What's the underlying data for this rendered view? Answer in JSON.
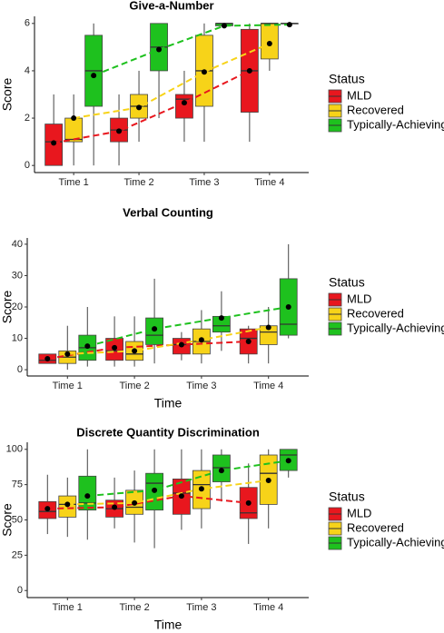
{
  "chart_data": [
    {
      "type": "box",
      "title": "Give-a-Number",
      "y_label": "Score",
      "legend_title": "Status",
      "categories": [
        "Time 1",
        "Time 2",
        "Time 3",
        "Time 4"
      ],
      "ylim": [
        -0.3,
        6.3
      ],
      "yticks": [
        0,
        2,
        4,
        6
      ],
      "series": [
        {
          "name": "MLD",
          "color": "#e8171e",
          "min": [
            0,
            0,
            1,
            1
          ],
          "q1": [
            0,
            1,
            2,
            2.25
          ],
          "median": [
            1,
            1.5,
            2.8,
            4
          ],
          "q3": [
            1.75,
            2,
            3,
            5.75
          ],
          "max": [
            3,
            3,
            4,
            6
          ],
          "mean": [
            0.95,
            1.45,
            2.65,
            4
          ]
        },
        {
          "name": "Recovered",
          "color": "#f7d319",
          "min": [
            0,
            1,
            1,
            4
          ],
          "q1": [
            1,
            2,
            2.5,
            4.5
          ],
          "median": [
            1.1,
            2.5,
            4,
            6
          ],
          "q3": [
            2,
            3,
            5.5,
            6
          ],
          "max": [
            3,
            4,
            6,
            6
          ],
          "mean": [
            2,
            2.45,
            3.95,
            5.15
          ]
        },
        {
          "name": "Typically-Achieving",
          "color": "#1ec11e",
          "min": [
            0,
            2,
            6,
            6
          ],
          "q1": [
            2.5,
            4,
            5.9,
            6
          ],
          "median": [
            4,
            5,
            6,
            6
          ],
          "q3": [
            5.5,
            6,
            6,
            6
          ],
          "max": [
            6,
            6,
            6,
            6
          ],
          "mean": [
            3.8,
            4.9,
            5.9,
            5.95
          ]
        }
      ]
    },
    {
      "type": "box",
      "title": "Verbal Counting",
      "y_label": "Score",
      "x_label": "Time",
      "legend_title": "Status",
      "categories": [
        "Time 1",
        "Time 2",
        "Time 3",
        "Time 4"
      ],
      "ylim": [
        -2,
        42
      ],
      "yticks": [
        0,
        10,
        20,
        30,
        40
      ],
      "series": [
        {
          "name": "MLD",
          "color": "#e8171e",
          "min": [
            2,
            1,
            3,
            2
          ],
          "q1": [
            2,
            3,
            5,
            5
          ],
          "median": [
            3,
            6,
            8,
            10
          ],
          "q3": [
            5,
            10,
            10,
            13
          ],
          "max": [
            5,
            17,
            12,
            14
          ],
          "mean": [
            3.5,
            7,
            8,
            9
          ]
        },
        {
          "name": "Recovered",
          "color": "#f7d319",
          "min": [
            0,
            1,
            2,
            2
          ],
          "q1": [
            2,
            3,
            5,
            8
          ],
          "median": [
            4,
            5,
            9,
            12
          ],
          "q3": [
            6,
            9,
            13,
            14
          ],
          "max": [
            14,
            17,
            19,
            20
          ],
          "mean": [
            5,
            6,
            9.5,
            13.5
          ]
        },
        {
          "name": "Typically-Achieving",
          "color": "#1ec11e",
          "min": [
            1,
            2,
            6,
            10
          ],
          "q1": [
            3,
            8,
            12,
            11
          ],
          "median": [
            7,
            11,
            14,
            14.5
          ],
          "q3": [
            11,
            16.5,
            17,
            29
          ],
          "max": [
            20,
            29,
            25,
            40
          ],
          "mean": [
            7.5,
            13,
            16.5,
            20
          ]
        }
      ]
    },
    {
      "type": "box",
      "title": "Discrete Quantity Discrimination",
      "y_label": "Score",
      "x_label": "Time",
      "legend_title": "Status",
      "categories": [
        "Time 1",
        "Time 2",
        "Time 3",
        "Time 4"
      ],
      "ylim": [
        -5,
        105
      ],
      "yticks": [
        0,
        25,
        50,
        75,
        100
      ],
      "series": [
        {
          "name": "MLD",
          "color": "#e8171e",
          "min": [
            40,
            44,
            43,
            33
          ],
          "q1": [
            51,
            52,
            54,
            51
          ],
          "median": [
            56,
            58,
            69,
            55
          ],
          "q3": [
            63,
            64,
            79,
            73
          ],
          "max": [
            82,
            80,
            100,
            90
          ],
          "mean": [
            58,
            59,
            67,
            62
          ]
        },
        {
          "name": "Recovered",
          "color": "#f7d319",
          "min": [
            38,
            34,
            44,
            44
          ],
          "q1": [
            52,
            54,
            58,
            61
          ],
          "median": [
            61,
            59,
            75,
            83
          ],
          "q3": [
            67,
            71,
            85,
            96
          ],
          "max": [
            80,
            85,
            100,
            100
          ],
          "mean": [
            61,
            62,
            72,
            78
          ]
        },
        {
          "name": "Typically-Achieving",
          "color": "#1ec11e",
          "min": [
            36,
            30,
            63,
            80
          ],
          "q1": [
            57,
            57,
            77,
            85
          ],
          "median": [
            62,
            76,
            87,
            96
          ],
          "q3": [
            81,
            83,
            96,
            100
          ],
          "max": [
            100,
            100,
            100,
            100
          ],
          "mean": [
            67,
            71,
            85,
            92
          ]
        }
      ]
    }
  ]
}
